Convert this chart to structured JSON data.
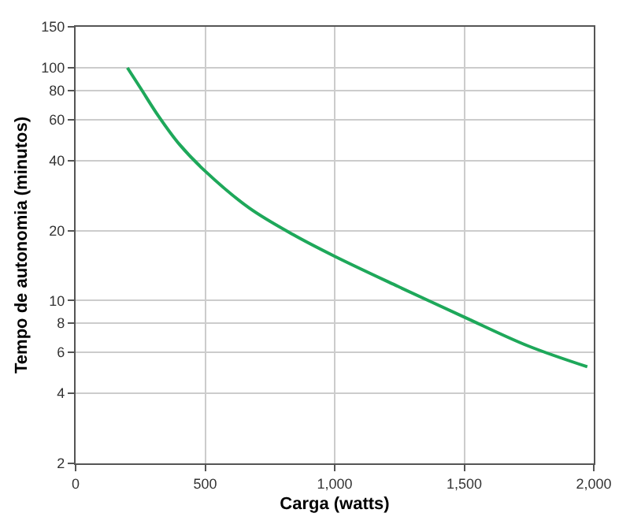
{
  "chart_data": {
    "type": "line",
    "xlabel": "Carga (watts)",
    "ylabel": "Tempo de autonomia (minutos)",
    "x": [
      200,
      250,
      320,
      400,
      500,
      670,
      840,
      1000,
      1245,
      1500,
      1745,
      1975
    ],
    "series": [
      {
        "color": "#1ea85a",
        "values": [
          100,
          82,
          62,
          47,
          36,
          25,
          19.2,
          15.5,
          11.5,
          8.5,
          6.4,
          5.2
        ]
      }
    ],
    "xlim": [
      0,
      2000
    ],
    "xticks": [
      0,
      500,
      {
        "value": 1000,
        "label": "1,000"
      },
      {
        "value": 1500,
        "label": "1,500"
      },
      {
        "value": 2000,
        "label": "2,000"
      }
    ],
    "ylim": [
      2,
      150
    ],
    "yticks": [
      2,
      4,
      6,
      8,
      10,
      20,
      40,
      60,
      80,
      100,
      150
    ],
    "log": "y",
    "grid": true,
    "legend": false,
    "marker": "none",
    "line_style": "solid"
  }
}
